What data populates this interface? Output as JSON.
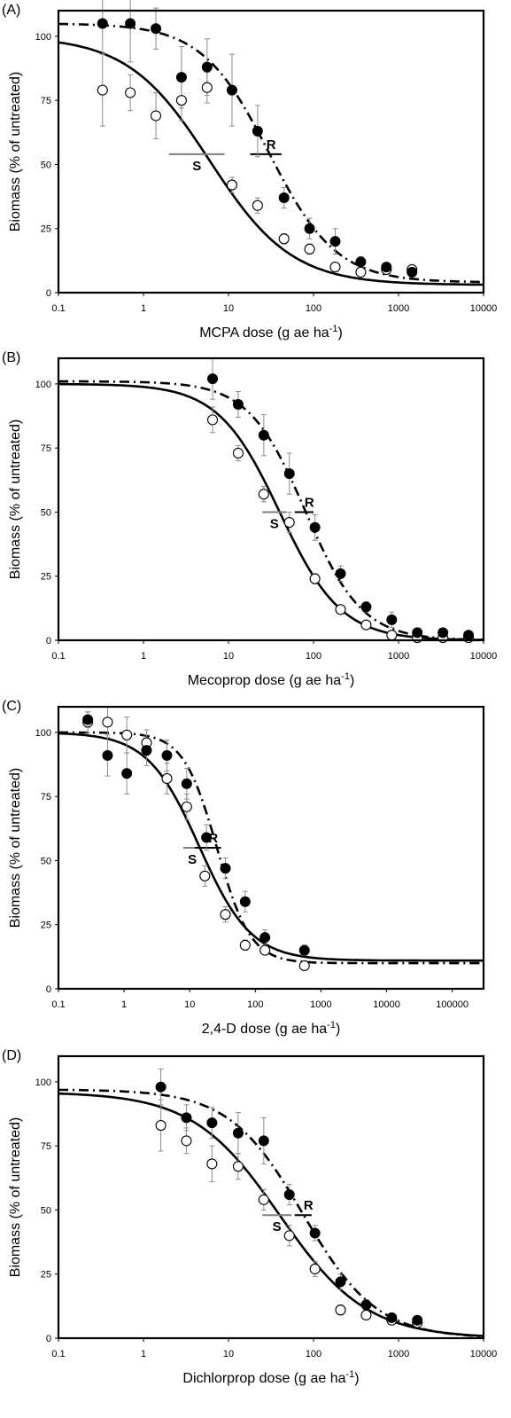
{
  "chart_data": [
    {
      "type": "scatter",
      "panel_label": "(A)",
      "xlabel": "MCPA dose (g ae ha",
      "xlabel_sup": "-1",
      "xlabel_close": ")",
      "ylabel": "Biomass (% of untreated)",
      "xscale": "log",
      "xlim": [
        0.1,
        10000
      ],
      "ylim": [
        0,
        110
      ],
      "xticks": [
        "0.1",
        "1",
        "10",
        "100",
        "1000",
        "10000"
      ],
      "yticks": [
        0,
        25,
        50,
        75,
        100
      ],
      "s_label": "S",
      "r_label": "R",
      "fit_S": {
        "top": 100,
        "bottom": 3,
        "ed50": 6,
        "slope": 0.9
      },
      "fit_R": {
        "top": 105,
        "bottom": 4,
        "ed50": 30,
        "slope": 1.1
      },
      "s_bar": {
        "y": 54,
        "x": [
          2,
          9
        ]
      },
      "r_bar": {
        "y": 54,
        "x": [
          18,
          42
        ]
      },
      "series": [
        {
          "name": "S",
          "marker": "open",
          "x": [
            0.33,
            0.7,
            1.4,
            2.8,
            5.6,
            11,
            22,
            45,
            90,
            180,
            360,
            720,
            1440
          ],
          "y": [
            79,
            78,
            69,
            75,
            80,
            42,
            34,
            21,
            17,
            10,
            8,
            9,
            9
          ],
          "err": [
            14,
            7,
            9,
            8,
            6,
            3,
            3,
            2,
            2,
            1,
            1,
            1,
            1
          ]
        },
        {
          "name": "R",
          "marker": "filled",
          "x": [
            0.33,
            0.7,
            1.4,
            2.8,
            5.6,
            11,
            22,
            45,
            90,
            180,
            360,
            720,
            1440
          ],
          "y": [
            105,
            105,
            103,
            84,
            88,
            79,
            63,
            37,
            25,
            20,
            12,
            10,
            8
          ],
          "err": [
            12,
            15,
            8,
            12,
            11,
            14,
            10,
            4,
            4,
            5,
            2,
            1,
            1
          ]
        }
      ]
    },
    {
      "type": "scatter",
      "panel_label": "(B)",
      "xlabel": "Mecoprop dose (g ae ha",
      "xlabel_sup": "-1",
      "xlabel_close": ")",
      "ylabel": "Biomass (% of untreated)",
      "xscale": "log",
      "xlim": [
        0.1,
        10000
      ],
      "ylim": [
        0,
        110
      ],
      "xticks": [
        "0.1",
        "1",
        "10",
        "100",
        "1000",
        "10000"
      ],
      "yticks": [
        0,
        25,
        50,
        75,
        100
      ],
      "s_label": "S",
      "r_label": "R",
      "fit_S": {
        "top": 100,
        "bottom": 0,
        "ed50": 40,
        "slope": 1.2
      },
      "fit_R": {
        "top": 101,
        "bottom": 0,
        "ed50": 80,
        "slope": 1.3
      },
      "s_bar": {
        "y": 50,
        "x": [
          25,
          48
        ]
      },
      "r_bar": {
        "y": 50,
        "x": [
          60,
          100
        ]
      },
      "series": [
        {
          "name": "S",
          "marker": "open",
          "x": [
            6.5,
            13,
            26,
            52,
            104,
            208,
            416,
            832,
            1664,
            3328,
            6656
          ],
          "y": [
            86,
            73,
            57,
            46,
            24,
            12,
            6,
            2,
            1,
            1,
            1
          ],
          "err": [
            5,
            3,
            3,
            4,
            2,
            1,
            1,
            1,
            0.5,
            0.5,
            0.5
          ]
        },
        {
          "name": "R",
          "marker": "filled",
          "x": [
            6.5,
            13,
            26,
            52,
            104,
            208,
            416,
            832,
            1664,
            3328,
            6656
          ],
          "y": [
            102,
            92,
            80,
            65,
            44,
            26,
            13,
            8,
            3,
            3,
            2
          ],
          "err": [
            8,
            5,
            8,
            8,
            5,
            3,
            2,
            3,
            1,
            1,
            1
          ]
        }
      ]
    },
    {
      "type": "scatter",
      "panel_label": "(C)",
      "xlabel": "2,4-D dose (g ae ha",
      "xlabel_sup": "-1",
      "xlabel_close": ")",
      "ylabel": "Biomass (% of untreated)",
      "xscale": "log",
      "xlim": [
        0.1,
        300000
      ],
      "ylim": [
        0,
        110
      ],
      "xticks": [
        "0.1",
        "1",
        "10",
        "100",
        "1000",
        "10000",
        "100000"
      ],
      "yticks": [
        0,
        25,
        50,
        75,
        100
      ],
      "s_label": "S",
      "r_label": "R",
      "fit_S": {
        "top": 100,
        "bottom": 11,
        "ed50": 14,
        "slope": 1.1
      },
      "fit_R": {
        "top": 100,
        "bottom": 10,
        "ed50": 26,
        "slope": 1.7
      },
      "s_bar": {
        "y": 55,
        "x": [
          8,
          15
        ]
      },
      "r_bar": {
        "y": 55,
        "x": [
          12,
          30
        ]
      },
      "series": [
        {
          "name": "S",
          "marker": "open",
          "x": [
            0.28,
            0.56,
            1.1,
            2.2,
            4.5,
            9,
            17,
            35,
            70,
            140,
            560
          ],
          "y": [
            104,
            104,
            99,
            96,
            82,
            71,
            44,
            29,
            17,
            15,
            9
          ],
          "err": [
            4,
            6,
            7,
            5,
            6,
            5,
            4,
            3,
            2,
            1,
            1
          ]
        },
        {
          "name": "R",
          "marker": "filled",
          "x": [
            0.28,
            0.56,
            1.1,
            2.2,
            4.5,
            9,
            18,
            35,
            70,
            140,
            560
          ],
          "y": [
            105,
            91,
            84,
            93,
            91,
            80,
            59,
            47,
            34,
            20,
            15
          ],
          "err": [
            3,
            8,
            8,
            6,
            6,
            6,
            5,
            4,
            4,
            3,
            2
          ]
        }
      ]
    },
    {
      "type": "scatter",
      "panel_label": "(D)",
      "xlabel": "Dichlorprop dose (g ae ha",
      "xlabel_sup": "-1",
      "xlabel_close": ")",
      "ylabel": "Biomass (% of untreated)",
      "xscale": "log",
      "xlim": [
        0.1,
        10000
      ],
      "ylim": [
        0,
        110
      ],
      "xticks": [
        "0.1",
        "1",
        "10",
        "100",
        "1000",
        "10000"
      ],
      "yticks": [
        0,
        25,
        50,
        75,
        100
      ],
      "s_label": "S",
      "r_label": "R",
      "fit_S": {
        "top": 96,
        "bottom": 0,
        "ed50": 40,
        "slope": 0.85
      },
      "fit_R": {
        "top": 97,
        "bottom": 0,
        "ed50": 75,
        "slope": 1.0
      },
      "s_bar": {
        "y": 48,
        "x": [
          25,
          55
        ]
      },
      "r_bar": {
        "y": 48,
        "x": [
          60,
          95
        ]
      },
      "series": [
        {
          "name": "S",
          "marker": "open",
          "x": [
            1.6,
            3.2,
            6.4,
            13,
            26,
            52,
            104,
            208,
            416,
            832,
            1664
          ],
          "y": [
            83,
            77,
            68,
            67,
            54,
            40,
            27,
            11,
            9,
            7,
            6
          ],
          "err": [
            10,
            5,
            7,
            5,
            4,
            4,
            3,
            2,
            1,
            1,
            1
          ]
        },
        {
          "name": "R",
          "marker": "filled",
          "x": [
            1.6,
            3.2,
            6.4,
            13,
            26,
            52,
            104,
            208,
            416,
            832,
            1664
          ],
          "y": [
            98,
            86,
            84,
            80,
            77,
            56,
            41,
            22,
            13,
            8,
            7
          ],
          "err": [
            7,
            5,
            6,
            8,
            9,
            4,
            3,
            3,
            2,
            1,
            1
          ]
        }
      ]
    }
  ]
}
